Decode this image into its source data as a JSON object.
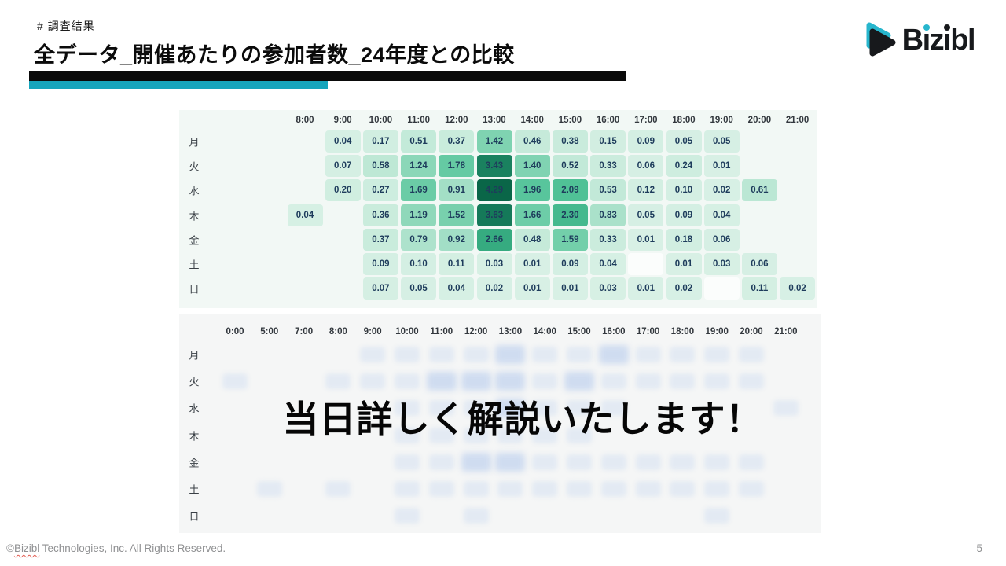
{
  "slide": {
    "kicker": "# 調査結果",
    "title": "全データ_開催あたりの参加者数_24年度との比較",
    "overlay_text": "当日詳しく解説いたします！",
    "footer": {
      "symbol": "©",
      "brand": "Bizibl",
      "rest": " Technologies, Inc. All Rights Reserved."
    },
    "page_number": "5",
    "logo": {
      "letters": [
        "B",
        "i",
        "z",
        "i",
        "b",
        "l"
      ]
    },
    "accent_teal": "#16a5bc"
  },
  "chart_data": [
    {
      "type": "heatmap",
      "name": "participants-per-event-current",
      "columns": [
        "8:00",
        "9:00",
        "10:00",
        "11:00",
        "12:00",
        "13:00",
        "14:00",
        "15:00",
        "16:00",
        "17:00",
        "18:00",
        "19:00",
        "20:00",
        "21:00"
      ],
      "rows": [
        "月",
        "火",
        "水",
        "木",
        "金",
        "土",
        "日"
      ],
      "values": [
        [
          null,
          0.04,
          0.17,
          0.51,
          0.37,
          1.42,
          0.46,
          0.38,
          0.15,
          0.09,
          0.05,
          0.05,
          null,
          null
        ],
        [
          null,
          0.07,
          0.58,
          1.24,
          1.78,
          3.43,
          1.4,
          0.52,
          0.33,
          0.06,
          0.24,
          0.01,
          null,
          null
        ],
        [
          null,
          0.2,
          0.27,
          1.69,
          0.91,
          4.29,
          1.96,
          2.09,
          0.53,
          0.12,
          0.1,
          0.02,
          0.61,
          null
        ],
        [
          0.04,
          null,
          0.36,
          1.19,
          1.52,
          3.63,
          1.66,
          2.3,
          0.83,
          0.05,
          0.09,
          0.04,
          null,
          null
        ],
        [
          null,
          null,
          0.37,
          0.79,
          0.92,
          2.66,
          0.48,
          1.59,
          0.33,
          0.01,
          0.18,
          0.06,
          null,
          null
        ],
        [
          null,
          null,
          0.09,
          0.1,
          0.11,
          0.03,
          0.01,
          0.09,
          0.04,
          null,
          0.01,
          0.03,
          0.06,
          null
        ],
        [
          null,
          null,
          0.07,
          0.05,
          0.04,
          0.02,
          0.01,
          0.01,
          0.03,
          0.01,
          0.02,
          null,
          0.11,
          0.02
        ]
      ],
      "blank_cells": [
        [
          5,
          9
        ],
        [
          6,
          11
        ]
      ],
      "color_scale": {
        "stops": [
          [
            0,
            "#d8f0e5"
          ],
          [
            0.5,
            "#c4ead9"
          ],
          [
            1.0,
            "#9cdcc2"
          ],
          [
            1.5,
            "#79d1ae"
          ],
          [
            2.0,
            "#55c49a"
          ],
          [
            2.5,
            "#3bb286"
          ],
          [
            3.0,
            "#2a9d74"
          ],
          [
            3.5,
            "#177d5c"
          ],
          [
            4.3,
            "#0a6648"
          ]
        ],
        "max": 4.29
      }
    },
    {
      "type": "heatmap",
      "name": "participants-per-event-fy24-blurred",
      "columns": [
        "0:00",
        "5:00",
        "7:00",
        "8:00",
        "9:00",
        "10:00",
        "11:00",
        "12:00",
        "13:00",
        "14:00",
        "15:00",
        "16:00",
        "17:00",
        "18:00",
        "19:00",
        "20:00",
        "21:00"
      ],
      "rows": [
        "月",
        "火",
        "水",
        "木",
        "金",
        "土",
        "日"
      ],
      "values": null,
      "note": "values intentionally blurred in source slide",
      "smudges": [
        {
          "cols": [
            4,
            5,
            6,
            7,
            8,
            9,
            10,
            11,
            12,
            13,
            14,
            15
          ],
          "strong": [
            8,
            11
          ]
        },
        {
          "cols": [
            0,
            3,
            4,
            5,
            6,
            7,
            8,
            9,
            10,
            11,
            12,
            13,
            14,
            15
          ],
          "strong": [
            6,
            7,
            8,
            10
          ]
        },
        {
          "cols": [
            5,
            6,
            7,
            8,
            9,
            10,
            11,
            16
          ],
          "strong": [
            8
          ]
        },
        {
          "cols": [
            5,
            6,
            7,
            8,
            9,
            10
          ],
          "strong": []
        },
        {
          "cols": [
            5,
            6,
            7,
            8,
            9,
            10,
            11,
            12,
            13,
            14,
            15
          ],
          "strong": [
            7,
            8
          ]
        },
        {
          "cols": [
            1,
            3,
            5,
            6,
            7,
            8,
            9,
            10,
            11,
            12,
            13,
            14,
            15
          ],
          "strong": []
        },
        {
          "cols": [
            5,
            7,
            14
          ],
          "strong": []
        }
      ]
    }
  ]
}
